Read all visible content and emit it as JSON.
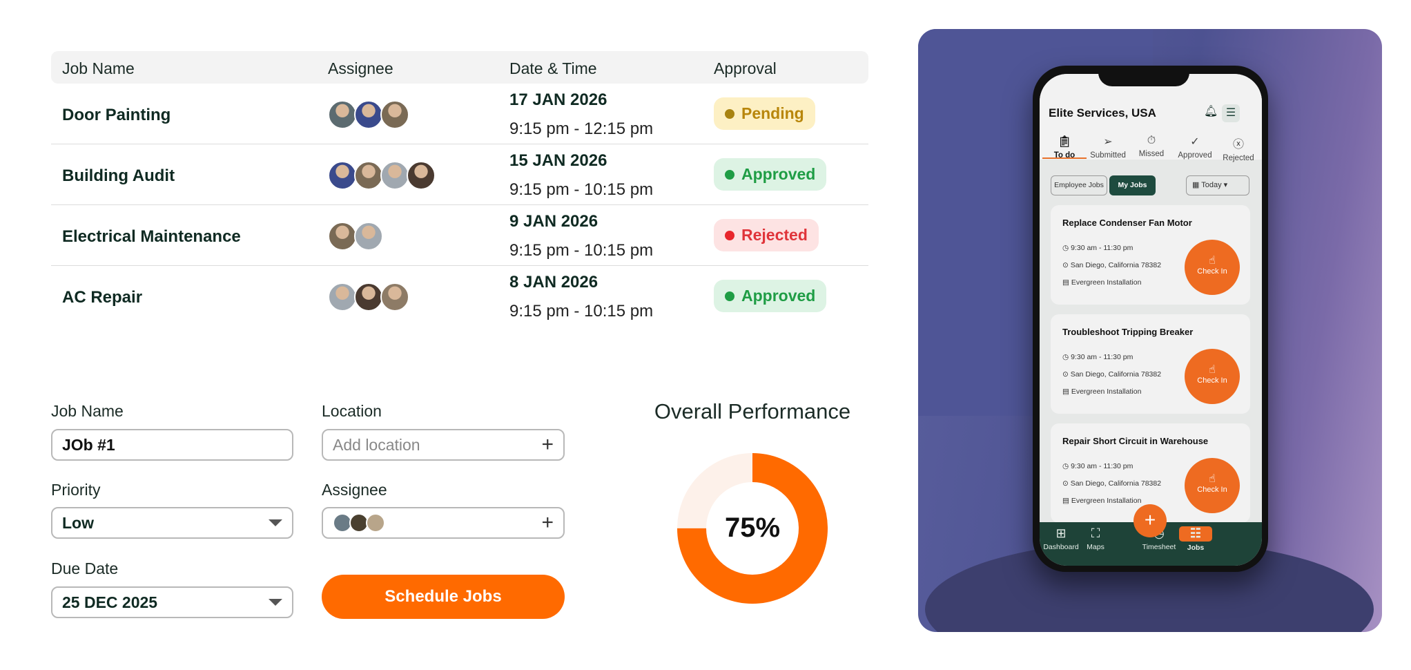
{
  "table": {
    "headers": [
      "Job Name",
      "Assignee",
      "Date & Time",
      "Approval"
    ],
    "rows": [
      {
        "job": "Door Painting",
        "date": "17 JAN 2026",
        "time": "9:15 pm - 12:15 pm",
        "status": "Pending",
        "avatars": 3
      },
      {
        "job": "Building Audit",
        "date": "15 JAN 2026",
        "time": "9:15 pm - 10:15 pm",
        "status": "Approved",
        "avatars": 4
      },
      {
        "job": "Electrical Maintenance",
        "date": "9 JAN 2026",
        "time": "9:15 pm - 10:15 pm",
        "status": "Rejected",
        "avatars": 2
      },
      {
        "job": "AC Repair",
        "date": "8 JAN 2026",
        "time": "9:15 pm - 10:15 pm",
        "status": "Approved",
        "avatars": 3
      }
    ]
  },
  "status_colors": {
    "Pending": {
      "bg": "#fdf0c4",
      "fg": "#b8860b",
      "dot": "#a88311"
    },
    "Approved": {
      "bg": "#ddf3e4",
      "fg": "#1f9d45",
      "dot": "#1f9d45"
    },
    "Rejected": {
      "bg": "#fde3e3",
      "fg": "#e0343a",
      "dot": "#e8262c"
    }
  },
  "form": {
    "job_name_label": "Job Name",
    "job_name_value": "JOb #1",
    "location_label": "Location",
    "location_placeholder": "Add location",
    "priority_label": "Priority",
    "priority_value": "Low",
    "assignee_label": "Assignee",
    "due_date_label": "Due Date",
    "due_date_value": "25 DEC 2025",
    "schedule_button": "Schedule Jobs"
  },
  "performance": {
    "title": "Overall Performance",
    "value": 75,
    "label": "75%",
    "accent": "#ff6a00"
  },
  "phone": {
    "title": "Elite Services, USA",
    "tabs": [
      {
        "label": "To do",
        "icon": "clipboard-icon"
      },
      {
        "label": "Submitted",
        "icon": "send-icon"
      },
      {
        "label": "Missed",
        "icon": "timer-icon"
      },
      {
        "label": "Approved",
        "icon": "check-circle-icon"
      },
      {
        "label": "Rejected",
        "icon": "x-circle-icon"
      }
    ],
    "filters": {
      "employee": "Employee Jobs",
      "mine": "My Jobs",
      "date": "Today"
    },
    "cards": [
      {
        "title": "Replace Condenser Fan Motor",
        "time": "9:30 am - 11:30 pm",
        "location": "San Diego, California 78382",
        "company": "Evergreen Installation",
        "action": "Check In"
      },
      {
        "title": "Troubleshoot Tripping Breaker",
        "time": "9:30 am - 11:30 pm",
        "location": "San Diego, California 78382",
        "company": "Evergreen Installation",
        "action": "Check In"
      },
      {
        "title": "Repair Short Circuit in Warehouse",
        "time": "9:30 am - 11:30 pm",
        "location": "San Diego, California 78382",
        "company": "Evergreen Installation",
        "action": "Check In"
      }
    ],
    "nav": [
      "Dashboard",
      "Maps",
      "Timesheet",
      "Jobs"
    ]
  }
}
